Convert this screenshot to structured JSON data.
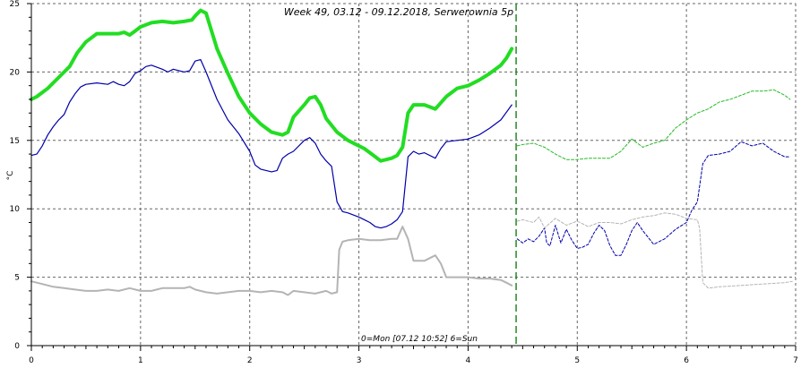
{
  "chart_data": {
    "type": "line",
    "title": "Week 49, 03.12 - 09.12.2018, Serwerownia 5p",
    "ylabel": "°C",
    "xlabel": "",
    "x_caption": "0=Mon [07.12 10:52] 6=Sun",
    "xlim": [
      0,
      7
    ],
    "ylim": [
      0,
      25
    ],
    "x_ticks": [
      0,
      1,
      2,
      3,
      4,
      5,
      6,
      7
    ],
    "x_tick_labels": [
      "0",
      "1",
      "2",
      "3",
      "4",
      "5",
      "6",
      "7"
    ],
    "y_ticks": [
      0,
      5,
      10,
      15,
      20,
      25
    ],
    "y_tick_labels": [
      "0",
      "5",
      "10",
      "15",
      "20",
      "25"
    ],
    "grid": true,
    "current_time_marker_x": 4.44,
    "colors": {
      "green": "#22dd22",
      "green_dash": "#22bb22",
      "blue": "#0000aa",
      "gray": "#b4b4b4",
      "marker": "#007700",
      "grid": "#666666"
    },
    "series": [
      {
        "color": "green",
        "style": "thick",
        "points": [
          [
            0.0,
            18.0
          ],
          [
            0.05,
            18.2
          ],
          [
            0.15,
            18.8
          ],
          [
            0.25,
            19.6
          ],
          [
            0.35,
            20.4
          ],
          [
            0.42,
            21.4
          ],
          [
            0.5,
            22.2
          ],
          [
            0.6,
            22.8
          ],
          [
            0.7,
            22.8
          ],
          [
            0.8,
            22.8
          ],
          [
            0.85,
            22.9
          ],
          [
            0.9,
            22.7
          ],
          [
            0.95,
            23.0
          ],
          [
            1.0,
            23.3
          ],
          [
            1.1,
            23.6
          ],
          [
            1.2,
            23.7
          ],
          [
            1.3,
            23.6
          ],
          [
            1.4,
            23.7
          ],
          [
            1.47,
            23.8
          ],
          [
            1.5,
            24.1
          ],
          [
            1.55,
            24.5
          ],
          [
            1.6,
            24.3
          ],
          [
            1.65,
            23.0
          ],
          [
            1.7,
            21.7
          ],
          [
            1.8,
            19.9
          ],
          [
            1.9,
            18.2
          ],
          [
            2.0,
            17.0
          ],
          [
            2.1,
            16.2
          ],
          [
            2.2,
            15.6
          ],
          [
            2.3,
            15.4
          ],
          [
            2.35,
            15.6
          ],
          [
            2.4,
            16.7
          ],
          [
            2.5,
            17.6
          ],
          [
            2.55,
            18.1
          ],
          [
            2.6,
            18.2
          ],
          [
            2.65,
            17.6
          ],
          [
            2.7,
            16.6
          ],
          [
            2.8,
            15.6
          ],
          [
            2.9,
            15.0
          ],
          [
            3.0,
            14.6
          ],
          [
            3.05,
            14.4
          ],
          [
            3.15,
            13.8
          ],
          [
            3.2,
            13.5
          ],
          [
            3.3,
            13.7
          ],
          [
            3.35,
            13.9
          ],
          [
            3.4,
            14.5
          ],
          [
            3.45,
            17.0
          ],
          [
            3.5,
            17.6
          ],
          [
            3.6,
            17.6
          ],
          [
            3.7,
            17.3
          ],
          [
            3.8,
            18.2
          ],
          [
            3.9,
            18.8
          ],
          [
            4.0,
            19.0
          ],
          [
            4.1,
            19.4
          ],
          [
            4.2,
            19.9
          ],
          [
            4.3,
            20.5
          ],
          [
            4.35,
            21.0
          ],
          [
            4.4,
            21.7
          ]
        ]
      },
      {
        "color": "blue",
        "style": "solid",
        "points": [
          [
            0.0,
            13.9
          ],
          [
            0.05,
            14.0
          ],
          [
            0.1,
            14.6
          ],
          [
            0.15,
            15.4
          ],
          [
            0.2,
            16.0
          ],
          [
            0.25,
            16.5
          ],
          [
            0.3,
            16.9
          ],
          [
            0.35,
            17.8
          ],
          [
            0.4,
            18.4
          ],
          [
            0.45,
            18.9
          ],
          [
            0.5,
            19.1
          ],
          [
            0.6,
            19.2
          ],
          [
            0.7,
            19.1
          ],
          [
            0.75,
            19.3
          ],
          [
            0.8,
            19.1
          ],
          [
            0.85,
            19.0
          ],
          [
            0.9,
            19.3
          ],
          [
            0.95,
            19.9
          ],
          [
            1.0,
            20.1
          ],
          [
            1.05,
            20.4
          ],
          [
            1.1,
            20.5
          ],
          [
            1.2,
            20.2
          ],
          [
            1.25,
            20.0
          ],
          [
            1.3,
            20.2
          ],
          [
            1.4,
            20.0
          ],
          [
            1.45,
            20.1
          ],
          [
            1.5,
            20.8
          ],
          [
            1.55,
            20.9
          ],
          [
            1.6,
            20.0
          ],
          [
            1.7,
            18.0
          ],
          [
            1.8,
            16.5
          ],
          [
            1.9,
            15.5
          ],
          [
            2.0,
            14.2
          ],
          [
            2.05,
            13.2
          ],
          [
            2.1,
            12.9
          ],
          [
            2.2,
            12.7
          ],
          [
            2.25,
            12.8
          ],
          [
            2.3,
            13.7
          ],
          [
            2.35,
            14.0
          ],
          [
            2.4,
            14.2
          ],
          [
            2.5,
            15.0
          ],
          [
            2.55,
            15.2
          ],
          [
            2.6,
            14.8
          ],
          [
            2.65,
            14.0
          ],
          [
            2.7,
            13.5
          ],
          [
            2.75,
            13.1
          ],
          [
            2.8,
            10.5
          ],
          [
            2.85,
            9.8
          ],
          [
            2.9,
            9.7
          ],
          [
            3.0,
            9.4
          ],
          [
            3.05,
            9.2
          ],
          [
            3.1,
            9.0
          ],
          [
            3.15,
            8.7
          ],
          [
            3.2,
            8.6
          ],
          [
            3.25,
            8.7
          ],
          [
            3.3,
            8.9
          ],
          [
            3.35,
            9.2
          ],
          [
            3.4,
            9.8
          ],
          [
            3.45,
            13.8
          ],
          [
            3.5,
            14.2
          ],
          [
            3.55,
            14.0
          ],
          [
            3.6,
            14.1
          ],
          [
            3.7,
            13.7
          ],
          [
            3.75,
            14.4
          ],
          [
            3.8,
            14.9
          ],
          [
            3.9,
            15.0
          ],
          [
            4.0,
            15.1
          ],
          [
            4.1,
            15.4
          ],
          [
            4.2,
            15.9
          ],
          [
            4.3,
            16.5
          ],
          [
            4.4,
            17.6
          ]
        ]
      },
      {
        "color": "gray",
        "style": "solid",
        "points": [
          [
            0.0,
            4.7
          ],
          [
            0.05,
            4.6
          ],
          [
            0.1,
            4.5
          ],
          [
            0.2,
            4.3
          ],
          [
            0.3,
            4.2
          ],
          [
            0.4,
            4.1
          ],
          [
            0.5,
            4.0
          ],
          [
            0.6,
            4.0
          ],
          [
            0.7,
            4.1
          ],
          [
            0.8,
            4.0
          ],
          [
            0.9,
            4.2
          ],
          [
            1.0,
            4.0
          ],
          [
            1.1,
            4.0
          ],
          [
            1.2,
            4.2
          ],
          [
            1.3,
            4.2
          ],
          [
            1.4,
            4.2
          ],
          [
            1.45,
            4.3
          ],
          [
            1.5,
            4.1
          ],
          [
            1.6,
            3.9
          ],
          [
            1.7,
            3.8
          ],
          [
            1.8,
            3.9
          ],
          [
            1.9,
            4.0
          ],
          [
            2.0,
            4.0
          ],
          [
            2.1,
            3.9
          ],
          [
            2.2,
            4.0
          ],
          [
            2.3,
            3.9
          ],
          [
            2.35,
            3.7
          ],
          [
            2.4,
            4.0
          ],
          [
            2.5,
            3.9
          ],
          [
            2.6,
            3.8
          ],
          [
            2.7,
            4.0
          ],
          [
            2.75,
            3.8
          ],
          [
            2.8,
            3.9
          ],
          [
            2.82,
            7.0
          ],
          [
            2.85,
            7.6
          ],
          [
            2.9,
            7.7
          ],
          [
            3.0,
            7.8
          ],
          [
            3.1,
            7.7
          ],
          [
            3.2,
            7.7
          ],
          [
            3.3,
            7.8
          ],
          [
            3.35,
            7.8
          ],
          [
            3.4,
            8.7
          ],
          [
            3.45,
            7.8
          ],
          [
            3.5,
            6.2
          ],
          [
            3.6,
            6.2
          ],
          [
            3.65,
            6.4
          ],
          [
            3.7,
            6.6
          ],
          [
            3.75,
            6.0
          ],
          [
            3.8,
            5.0
          ],
          [
            3.9,
            5.0
          ],
          [
            4.0,
            5.0
          ],
          [
            4.1,
            4.9
          ],
          [
            4.2,
            4.9
          ],
          [
            4.3,
            4.8
          ],
          [
            4.35,
            4.6
          ],
          [
            4.4,
            4.4
          ]
        ]
      },
      {
        "color": "green_dash",
        "style": "dotted",
        "points": [
          [
            4.45,
            14.6
          ],
          [
            4.5,
            14.7
          ],
          [
            4.6,
            14.8
          ],
          [
            4.7,
            14.5
          ],
          [
            4.8,
            14.0
          ],
          [
            4.9,
            13.6
          ],
          [
            5.0,
            13.6
          ],
          [
            5.1,
            13.7
          ],
          [
            5.2,
            13.7
          ],
          [
            5.3,
            13.7
          ],
          [
            5.4,
            14.2
          ],
          [
            5.5,
            15.1
          ],
          [
            5.6,
            14.5
          ],
          [
            5.7,
            14.8
          ],
          [
            5.8,
            15.0
          ],
          [
            5.9,
            15.9
          ],
          [
            6.0,
            16.5
          ],
          [
            6.1,
            17.0
          ],
          [
            6.2,
            17.3
          ],
          [
            6.3,
            17.8
          ],
          [
            6.4,
            18.0
          ],
          [
            6.5,
            18.3
          ],
          [
            6.6,
            18.6
          ],
          [
            6.7,
            18.6
          ],
          [
            6.8,
            18.7
          ],
          [
            6.9,
            18.3
          ],
          [
            6.95,
            18.0
          ]
        ]
      },
      {
        "color": "blue",
        "style": "dotted",
        "points": [
          [
            4.45,
            7.8
          ],
          [
            4.5,
            7.5
          ],
          [
            4.55,
            7.8
          ],
          [
            4.6,
            7.6
          ],
          [
            4.65,
            8.0
          ],
          [
            4.7,
            8.6
          ],
          [
            4.72,
            7.5
          ],
          [
            4.75,
            7.3
          ],
          [
            4.8,
            8.8
          ],
          [
            4.85,
            7.5
          ],
          [
            4.9,
            8.5
          ],
          [
            4.95,
            7.7
          ],
          [
            5.0,
            7.1
          ],
          [
            5.05,
            7.2
          ],
          [
            5.1,
            7.4
          ],
          [
            5.15,
            8.2
          ],
          [
            5.2,
            8.8
          ],
          [
            5.25,
            8.4
          ],
          [
            5.3,
            7.3
          ],
          [
            5.35,
            6.6
          ],
          [
            5.4,
            6.6
          ],
          [
            5.45,
            7.4
          ],
          [
            5.5,
            8.4
          ],
          [
            5.55,
            9.0
          ],
          [
            5.6,
            8.4
          ],
          [
            5.7,
            7.4
          ],
          [
            5.8,
            7.8
          ],
          [
            5.9,
            8.5
          ],
          [
            6.0,
            9.0
          ],
          [
            6.05,
            9.9
          ],
          [
            6.1,
            10.5
          ],
          [
            6.15,
            13.3
          ],
          [
            6.2,
            13.9
          ],
          [
            6.3,
            14.0
          ],
          [
            6.4,
            14.2
          ],
          [
            6.5,
            14.9
          ],
          [
            6.6,
            14.6
          ],
          [
            6.7,
            14.8
          ],
          [
            6.8,
            14.2
          ],
          [
            6.9,
            13.8
          ],
          [
            6.95,
            13.8
          ]
        ]
      },
      {
        "color": "gray",
        "style": "dotted",
        "points": [
          [
            4.45,
            9.1
          ],
          [
            4.5,
            9.2
          ],
          [
            4.6,
            9.0
          ],
          [
            4.65,
            9.4
          ],
          [
            4.7,
            8.6
          ],
          [
            4.8,
            9.3
          ],
          [
            4.9,
            8.8
          ],
          [
            5.0,
            9.1
          ],
          [
            5.1,
            8.7
          ],
          [
            5.2,
            9.0
          ],
          [
            5.3,
            9.0
          ],
          [
            5.4,
            8.9
          ],
          [
            5.5,
            9.2
          ],
          [
            5.6,
            9.4
          ],
          [
            5.7,
            9.5
          ],
          [
            5.8,
            9.7
          ],
          [
            5.9,
            9.6
          ],
          [
            6.0,
            9.3
          ],
          [
            6.1,
            9.2
          ],
          [
            6.12,
            8.6
          ],
          [
            6.15,
            4.6
          ],
          [
            6.2,
            4.2
          ],
          [
            6.3,
            4.3
          ],
          [
            6.5,
            4.4
          ],
          [
            6.7,
            4.5
          ],
          [
            6.9,
            4.6
          ],
          [
            6.97,
            4.7
          ]
        ]
      }
    ]
  }
}
